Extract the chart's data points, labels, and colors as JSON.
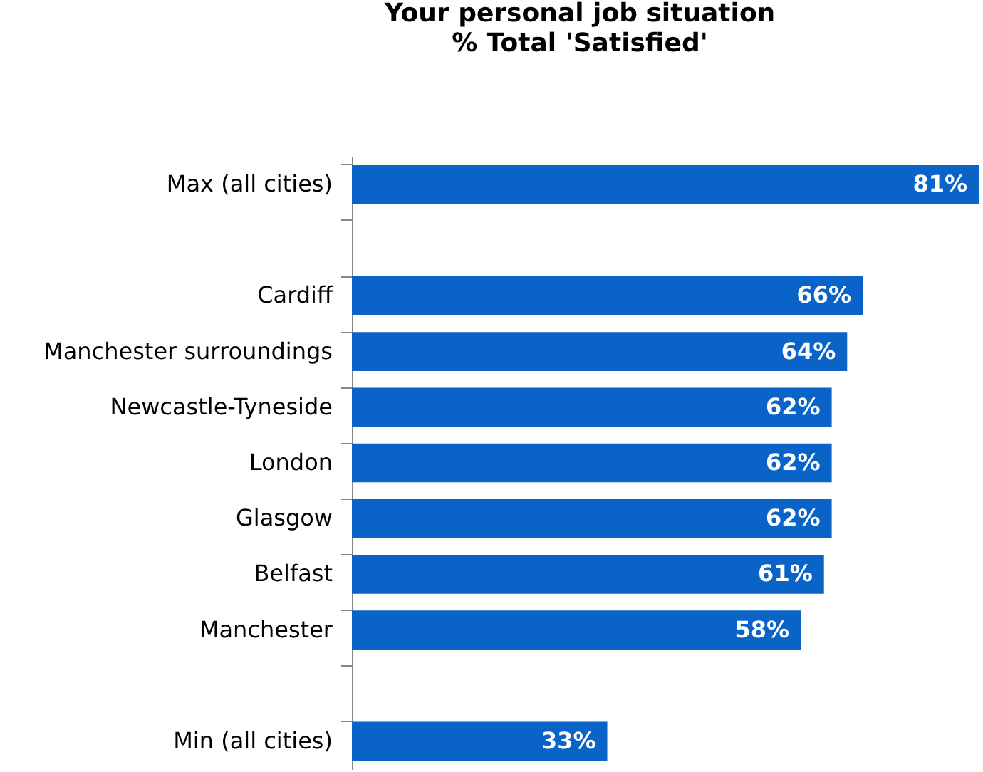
{
  "chart_data": {
    "type": "bar",
    "orientation": "horizontal",
    "title": "Your personal job situation",
    "subtitle": "% Total 'Satisfied'",
    "categories": [
      "Max (all cities)",
      null,
      "Cardiff",
      "Manchester surroundings",
      "Newcastle-Tyneside",
      "London",
      "Glasgow",
      "Belfast",
      "Manchester",
      null,
      "Min (all cities)"
    ],
    "values": [
      81,
      null,
      66,
      64,
      62,
      62,
      62,
      61,
      58,
      null,
      33
    ],
    "value_labels": [
      "81%",
      null,
      "66%",
      "64%",
      "62%",
      "62%",
      "62%",
      "61%",
      "58%",
      null,
      "33%"
    ],
    "color": "#0a64c8"
  }
}
